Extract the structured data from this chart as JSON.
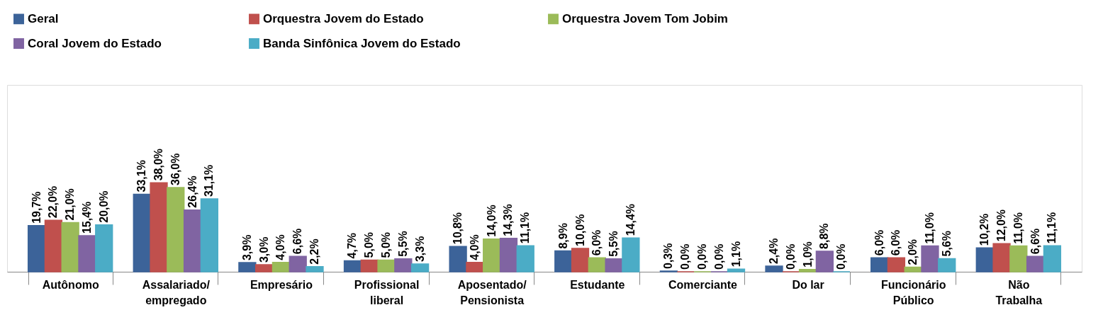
{
  "chart_data": {
    "type": "bar",
    "categories": [
      "Autônomo",
      "Assalariado/\nempregado",
      "Empresário",
      "Profissional\nliberal",
      "Aposentado/\nPensionista",
      "Estudante",
      "Comerciante",
      "Do lar",
      "Funcionário\nPúblico",
      "Não\nTrabalha"
    ],
    "series": [
      {
        "name": "Geral",
        "color": "#3c6399",
        "values": [
          19.7,
          33.1,
          3.9,
          4.7,
          10.8,
          8.9,
          0.3,
          2.4,
          6.0,
          10.2
        ],
        "value_labels": [
          "19,7%",
          "33,1%",
          "3,9%",
          "4,7%",
          "10,8%",
          "8,9%",
          "0,3%",
          "2,4%",
          "6,0%",
          "10,2%"
        ]
      },
      {
        "name": "Orquestra Jovem do Estado",
        "color": "#c0504d",
        "values": [
          22.0,
          38.0,
          3.0,
          5.0,
          4.0,
          10.0,
          0.0,
          0.0,
          6.0,
          12.0
        ],
        "value_labels": [
          "22,0%",
          "38,0%",
          "3,0%",
          "5,0%",
          "4,0%",
          "10,0%",
          "0,0%",
          "0,0%",
          "6,0%",
          "12,0%"
        ]
      },
      {
        "name": "Orquestra Jovem Tom Jobim",
        "color": "#9bbb59",
        "values": [
          21.0,
          36.0,
          4.0,
          5.0,
          14.0,
          6.0,
          0.0,
          1.0,
          2.0,
          11.0
        ],
        "value_labels": [
          "21,0%",
          "36,0%",
          "4,0%",
          "5,0%",
          "14,0%",
          "6,0%",
          "0,0%",
          "1,0%",
          "2,0%",
          "11,0%"
        ]
      },
      {
        "name": "Coral Jovem do Estado",
        "color": "#8064a2",
        "values": [
          15.4,
          26.4,
          6.6,
          5.5,
          14.3,
          5.5,
          0.0,
          8.8,
          11.0,
          6.6
        ],
        "value_labels": [
          "15,4%",
          "26,4%",
          "6,6%",
          "5,5%",
          "14,3%",
          "5,5%",
          "0,0%",
          "8,8%",
          "11,0%",
          "6,6%"
        ]
      },
      {
        "name": "Banda Sinfônica Jovem do Estado",
        "color": "#4bacc6",
        "values": [
          20.0,
          31.1,
          2.2,
          3.3,
          11.1,
          14.4,
          1.1,
          0.0,
          5.6,
          11.1
        ],
        "value_labels": [
          "20,0%",
          "31,1%",
          "2,2%",
          "3,3%",
          "11,1%",
          "14,4%",
          "1,1%",
          "0,0%",
          "5,6%",
          "11,1%"
        ]
      }
    ],
    "legend": "top"
  }
}
